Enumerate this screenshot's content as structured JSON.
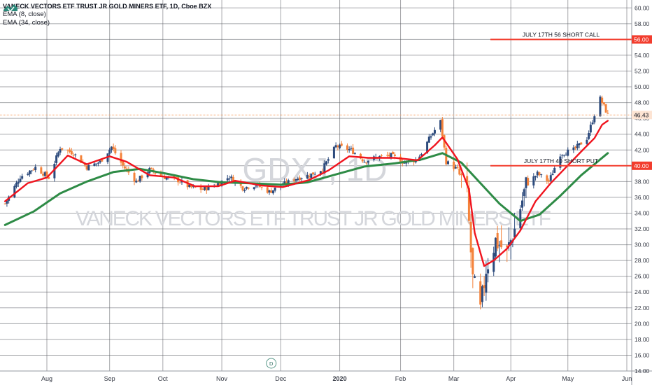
{
  "chart_data": {
    "type": "candlestick",
    "title": "VANECK VECTORS ETF TRUST JR GOLD MINERS ETF, 1D, Cboe BZX",
    "watermark_symbol": "GDXJ, 1D",
    "watermark_name": "VANECK VECTORS ETF TRUST JR GOLD MINERS ETF",
    "indicators": [
      "EMA (8, close)",
      "EMA (34, close)"
    ],
    "y_axis": {
      "range": [
        14.0,
        61.0
      ],
      "ticks": [
        "14.00",
        "16.00",
        "18.00",
        "20.00",
        "22.00",
        "24.00",
        "26.00",
        "28.00",
        "30.00",
        "32.00",
        "34.00",
        "36.00",
        "38.00",
        "40.00",
        "42.00",
        "44.00",
        "46.00",
        "48.00",
        "50.00",
        "52.00",
        "54.00",
        "56.00",
        "58.00",
        "60.00"
      ]
    },
    "x_axis": {
      "ticks": [
        {
          "label": "Aug",
          "date": "2019-08-01"
        },
        {
          "label": "Sep",
          "date": "2019-09-03"
        },
        {
          "label": "Oct",
          "date": "2019-10-01"
        },
        {
          "label": "Nov",
          "date": "2019-11-01"
        },
        {
          "label": "Dec",
          "date": "2019-12-02"
        },
        {
          "label": "2020",
          "date": "2020-01-02"
        },
        {
          "label": "Feb",
          "date": "2020-02-03"
        },
        {
          "label": "Mar",
          "date": "2020-03-02"
        },
        {
          "label": "Apr",
          "date": "2020-04-01"
        },
        {
          "label": "May",
          "date": "2020-05-01"
        },
        {
          "label": "Jun",
          "date": "2020-06-01"
        }
      ]
    },
    "price_path": [
      [
        "2019-07-10",
        35.2
      ],
      [
        "2019-07-18",
        38.6
      ],
      [
        "2019-07-26",
        39.8
      ],
      [
        "2019-08-02",
        38.5
      ],
      [
        "2019-08-08",
        42.3
      ],
      [
        "2019-08-15",
        41.6
      ],
      [
        "2019-08-22",
        39.8
      ],
      [
        "2019-08-29",
        40.5
      ],
      [
        "2019-09-04",
        42.4
      ],
      [
        "2019-09-10",
        40.0
      ],
      [
        "2019-09-17",
        38.0
      ],
      [
        "2019-09-24",
        39.5
      ],
      [
        "2019-10-01",
        38.6
      ],
      [
        "2019-10-08",
        38.3
      ],
      [
        "2019-10-15",
        37.3
      ],
      [
        "2019-10-22",
        37.0
      ],
      [
        "2019-10-29",
        37.6
      ],
      [
        "2019-11-05",
        38.6
      ],
      [
        "2019-11-12",
        37.2
      ],
      [
        "2019-11-19",
        37.6
      ],
      [
        "2019-11-26",
        36.7
      ],
      [
        "2019-12-03",
        37.6
      ],
      [
        "2019-12-10",
        38.4
      ],
      [
        "2019-12-17",
        38.8
      ],
      [
        "2019-12-24",
        39.6
      ],
      [
        "2019-12-31",
        42.5
      ],
      [
        "2020-01-08",
        42.0
      ],
      [
        "2020-01-15",
        40.6
      ],
      [
        "2020-01-22",
        41.1
      ],
      [
        "2020-01-29",
        41.3
      ],
      [
        "2020-02-05",
        40.4
      ],
      [
        "2020-02-12",
        40.8
      ],
      [
        "2020-02-19",
        43.8
      ],
      [
        "2020-02-24",
        45.6
      ],
      [
        "2020-02-27",
        40.5
      ],
      [
        "2020-03-04",
        39.5
      ],
      [
        "2020-03-09",
        36.2
      ],
      [
        "2020-03-12",
        25.5
      ],
      [
        "2020-03-16",
        21.5
      ],
      [
        "2020-03-19",
        27.0
      ],
      [
        "2020-03-24",
        30.5
      ],
      [
        "2020-03-30",
        29.0
      ],
      [
        "2020-04-03",
        32.0
      ],
      [
        "2020-04-09",
        37.5
      ],
      [
        "2020-04-15",
        39.0
      ],
      [
        "2020-04-21",
        38.0
      ],
      [
        "2020-04-27",
        41.5
      ],
      [
        "2020-05-04",
        42.0
      ],
      [
        "2020-05-11",
        43.5
      ],
      [
        "2020-05-15",
        46.5
      ],
      [
        "2020-05-18",
        48.5
      ],
      [
        "2020-05-20",
        47.5
      ],
      [
        "2020-05-22",
        46.43
      ]
    ],
    "ema_8": [
      [
        "2019-07-10",
        35.5
      ],
      [
        "2019-07-22",
        37.8
      ],
      [
        "2019-08-01",
        38.5
      ],
      [
        "2019-08-12",
        41.3
      ],
      [
        "2019-08-22",
        40.2
      ],
      [
        "2019-09-03",
        41.2
      ],
      [
        "2019-09-12",
        40.5
      ],
      [
        "2019-09-24",
        38.8
      ],
      [
        "2019-10-07",
        38.5
      ],
      [
        "2019-10-18",
        37.4
      ],
      [
        "2019-10-30",
        37.4
      ],
      [
        "2019-11-08",
        38.1
      ],
      [
        "2019-11-22",
        37.5
      ],
      [
        "2019-12-03",
        37.3
      ],
      [
        "2019-12-17",
        38.2
      ],
      [
        "2019-12-27",
        39.4
      ],
      [
        "2020-01-07",
        41.2
      ],
      [
        "2020-01-17",
        41.0
      ],
      [
        "2020-01-31",
        41.0
      ],
      [
        "2020-02-12",
        40.7
      ],
      [
        "2020-02-21",
        42.6
      ],
      [
        "2020-02-25",
        43.6
      ],
      [
        "2020-03-04",
        40.8
      ],
      [
        "2020-03-10",
        37.0
      ],
      [
        "2020-03-13",
        31.5
      ],
      [
        "2020-03-18",
        27.3
      ],
      [
        "2020-03-23",
        28.0
      ],
      [
        "2020-03-30",
        29.5
      ],
      [
        "2020-04-06",
        31.8
      ],
      [
        "2020-04-14",
        35.5
      ],
      [
        "2020-04-22",
        37.8
      ],
      [
        "2020-04-30",
        39.8
      ],
      [
        "2020-05-08",
        41.8
      ],
      [
        "2020-05-15",
        43.5
      ],
      [
        "2020-05-19",
        45.2
      ],
      [
        "2020-05-22",
        45.7
      ]
    ],
    "ema_34": [
      [
        "2019-07-10",
        32.5
      ],
      [
        "2019-07-25",
        34.2
      ],
      [
        "2019-08-08",
        36.5
      ],
      [
        "2019-08-22",
        38.0
      ],
      [
        "2019-09-05",
        39.2
      ],
      [
        "2019-09-19",
        39.6
      ],
      [
        "2019-10-03",
        39.0
      ],
      [
        "2019-10-17",
        38.3
      ],
      [
        "2019-11-01",
        37.9
      ],
      [
        "2019-11-15",
        37.8
      ],
      [
        "2019-12-02",
        37.6
      ],
      [
        "2019-12-16",
        37.9
      ],
      [
        "2019-12-31",
        38.9
      ],
      [
        "2020-01-15",
        39.9
      ],
      [
        "2020-01-31",
        40.3
      ],
      [
        "2020-02-14",
        40.8
      ],
      [
        "2020-02-25",
        41.6
      ],
      [
        "2020-03-06",
        40.4
      ],
      [
        "2020-03-16",
        37.8
      ],
      [
        "2020-03-26",
        35.2
      ],
      [
        "2020-04-06",
        33.0
      ],
      [
        "2020-04-16",
        33.8
      ],
      [
        "2020-04-27",
        36.2
      ],
      [
        "2020-05-08",
        38.8
      ],
      [
        "2020-05-18",
        40.8
      ],
      [
        "2020-05-22",
        41.6
      ]
    ],
    "horizontal_lines": [
      {
        "label": "JULY 17TH 56 SHORT CALL",
        "value": 56.0,
        "value_label": "56.00",
        "color": "#f23d2e"
      },
      {
        "label": "JULY 17TH 40 SHORT PUT",
        "value": 40.0,
        "value_label": "40.00",
        "color": "#f23d2e"
      }
    ],
    "last_price": {
      "value": 46.43,
      "value_label": "46.43",
      "color": "#f7a56b"
    },
    "event_marker": {
      "label": "D",
      "date": "2019-11-27"
    },
    "colors": {
      "up_candle": "#2c4a7c",
      "down_candle": "#f4823a",
      "ema_8": "#f0141e",
      "ema_34": "#2e8b46",
      "grid": "#5d5f66",
      "watermark": "#d4d6db",
      "axis_text": "#363a45"
    }
  }
}
